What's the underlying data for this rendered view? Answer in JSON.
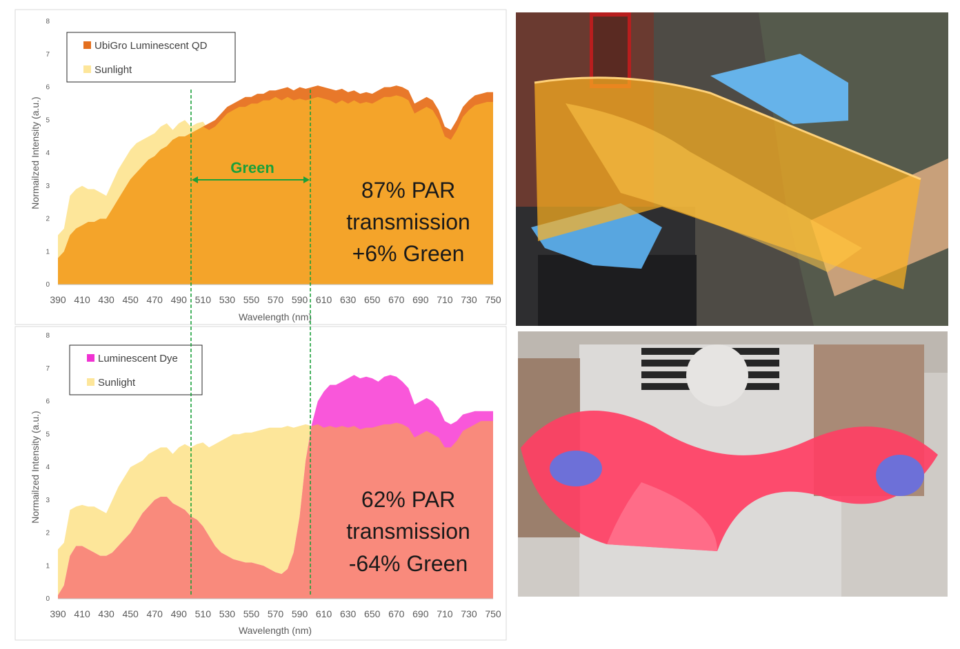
{
  "colors": {
    "sunlight": "#fde69a",
    "qd": "#f4a42a",
    "qd_legend": "#e46f1e",
    "qd_dark": "#e8782a",
    "dye": "#f98a7c",
    "dye_legend": "#f032d2",
    "dye_pink": "#f957da",
    "green_marker": "#1aa03a"
  },
  "chart_data": [
    {
      "type": "area",
      "xlabel": "Wavelength (nm)",
      "ylabel": "Normailzed Intensity (a.u.)",
      "ylim": [
        0,
        8
      ],
      "xlim": [
        390,
        750
      ],
      "xticks": [
        "390",
        "410",
        "430",
        "450",
        "470",
        "490",
        "510",
        "530",
        "550",
        "570",
        "590",
        "610",
        "630",
        "650",
        "670",
        "690",
        "710",
        "730",
        "750"
      ],
      "yticks": [
        "0",
        "1",
        "2",
        "3",
        "4",
        "5",
        "6",
        "7",
        "8"
      ],
      "grid": false,
      "legend": "top-left",
      "x": [
        390,
        395,
        400,
        405,
        410,
        415,
        420,
        425,
        430,
        435,
        440,
        445,
        450,
        455,
        460,
        465,
        470,
        475,
        480,
        485,
        490,
        495,
        500,
        505,
        510,
        515,
        520,
        525,
        530,
        535,
        540,
        545,
        550,
        555,
        560,
        565,
        570,
        575,
        580,
        585,
        590,
        595,
        600,
        605,
        610,
        615,
        620,
        625,
        630,
        635,
        640,
        645,
        650,
        655,
        660,
        665,
        670,
        675,
        680,
        685,
        690,
        695,
        700,
        705,
        710,
        715,
        720,
        725,
        730,
        735,
        740,
        745,
        750
      ],
      "series": [
        {
          "name": "UbiGro Luminescent QD",
          "values": [
            0.8,
            1.0,
            1.5,
            1.7,
            1.8,
            1.9,
            1.9,
            2.0,
            2.0,
            2.3,
            2.6,
            2.9,
            3.2,
            3.4,
            3.6,
            3.8,
            3.9,
            4.1,
            4.2,
            4.4,
            4.5,
            4.5,
            4.6,
            4.7,
            4.8,
            4.9,
            5.0,
            5.2,
            5.4,
            5.5,
            5.6,
            5.7,
            5.7,
            5.8,
            5.8,
            5.9,
            5.9,
            5.95,
            6.0,
            5.9,
            6.0,
            5.95,
            6.0,
            6.05,
            6.0,
            5.95,
            5.9,
            5.95,
            5.85,
            5.9,
            5.8,
            5.85,
            5.8,
            5.9,
            6.0,
            6.0,
            6.05,
            6.0,
            5.9,
            5.5,
            5.6,
            5.7,
            5.6,
            5.3,
            4.8,
            4.7,
            5.0,
            5.4,
            5.6,
            5.75,
            5.8,
            5.85,
            5.85
          ]
        },
        {
          "name": "Sunlight",
          "values": [
            1.5,
            1.7,
            2.7,
            2.9,
            3.0,
            2.9,
            2.9,
            2.8,
            2.7,
            3.1,
            3.5,
            3.8,
            4.1,
            4.3,
            4.4,
            4.5,
            4.6,
            4.8,
            4.9,
            4.7,
            4.9,
            5.0,
            4.8,
            4.9,
            4.95,
            4.7,
            4.8,
            5.0,
            5.2,
            5.3,
            5.4,
            5.4,
            5.5,
            5.5,
            5.6,
            5.6,
            5.7,
            5.6,
            5.7,
            5.6,
            5.65,
            5.6,
            5.65,
            5.7,
            5.65,
            5.6,
            5.5,
            5.6,
            5.5,
            5.6,
            5.5,
            5.55,
            5.5,
            5.6,
            5.7,
            5.7,
            5.75,
            5.7,
            5.6,
            5.2,
            5.3,
            5.4,
            5.3,
            5.0,
            4.5,
            4.4,
            4.7,
            5.1,
            5.3,
            5.45,
            5.5,
            5.55,
            5.55
          ]
        }
      ]
    },
    {
      "type": "area",
      "xlabel": "Wavelength (nm)",
      "ylabel": "Normailzed Intensity (a.u.)",
      "ylim": [
        0,
        8
      ],
      "xlim": [
        390,
        750
      ],
      "xticks": [
        "390",
        "410",
        "430",
        "450",
        "470",
        "490",
        "510",
        "530",
        "550",
        "570",
        "590",
        "610",
        "630",
        "650",
        "670",
        "690",
        "710",
        "730",
        "750"
      ],
      "yticks": [
        "0",
        "1",
        "2",
        "3",
        "4",
        "5",
        "6",
        "7",
        "8"
      ],
      "grid": false,
      "legend": "top-left",
      "x": [
        390,
        395,
        400,
        405,
        410,
        415,
        420,
        425,
        430,
        435,
        440,
        445,
        450,
        455,
        460,
        465,
        470,
        475,
        480,
        485,
        490,
        495,
        500,
        505,
        510,
        515,
        520,
        525,
        530,
        535,
        540,
        545,
        550,
        555,
        560,
        565,
        570,
        575,
        580,
        585,
        590,
        595,
        600,
        605,
        610,
        615,
        620,
        625,
        630,
        635,
        640,
        645,
        650,
        655,
        660,
        665,
        670,
        675,
        680,
        685,
        690,
        695,
        700,
        705,
        710,
        715,
        720,
        725,
        730,
        735,
        740,
        745,
        750
      ],
      "series": [
        {
          "name": "Luminescent Dye",
          "values": [
            0.1,
            0.4,
            1.3,
            1.6,
            1.6,
            1.5,
            1.4,
            1.3,
            1.3,
            1.4,
            1.6,
            1.8,
            2.0,
            2.3,
            2.6,
            2.8,
            3.0,
            3.1,
            3.1,
            2.9,
            2.8,
            2.7,
            2.5,
            2.4,
            2.2,
            1.9,
            1.6,
            1.4,
            1.3,
            1.2,
            1.15,
            1.1,
            1.1,
            1.05,
            1.0,
            0.9,
            0.8,
            0.75,
            0.9,
            1.4,
            2.5,
            4.2,
            5.3,
            6.0,
            6.3,
            6.5,
            6.5,
            6.6,
            6.7,
            6.8,
            6.7,
            6.75,
            6.7,
            6.6,
            6.75,
            6.8,
            6.75,
            6.6,
            6.4,
            5.9,
            6.0,
            6.1,
            6.0,
            5.8,
            5.4,
            5.3,
            5.4,
            5.6,
            5.65,
            5.7,
            5.7,
            5.7,
            5.7
          ]
        },
        {
          "name": "Sunlight",
          "values": [
            1.5,
            1.7,
            2.7,
            2.8,
            2.85,
            2.8,
            2.8,
            2.7,
            2.6,
            3.0,
            3.4,
            3.7,
            4.0,
            4.1,
            4.2,
            4.4,
            4.5,
            4.6,
            4.6,
            4.4,
            4.6,
            4.7,
            4.6,
            4.7,
            4.75,
            4.6,
            4.7,
            4.8,
            4.9,
            5.0,
            5.0,
            5.05,
            5.05,
            5.1,
            5.15,
            5.2,
            5.2,
            5.2,
            5.25,
            5.2,
            5.25,
            5.3,
            5.25,
            5.3,
            5.2,
            5.25,
            5.2,
            5.25,
            5.2,
            5.25,
            5.15,
            5.2,
            5.2,
            5.25,
            5.3,
            5.3,
            5.35,
            5.3,
            5.2,
            4.9,
            5.0,
            5.1,
            5.0,
            4.9,
            4.6,
            4.6,
            4.8,
            5.1,
            5.2,
            5.3,
            5.4,
            5.4,
            5.4
          ]
        }
      ]
    }
  ],
  "overlays": {
    "top": {
      "green_region_label": "Green",
      "green_region": [
        500,
        600
      ],
      "stat_lines": [
        "87% PAR",
        "transmission",
        "+6% Green"
      ]
    },
    "bottom": {
      "green_region": [
        500,
        600
      ],
      "stat_lines": [
        "62% PAR",
        "transmission",
        "-64% Green"
      ]
    }
  },
  "photos": [
    {
      "subject": "hands holding flexible orange luminescent film"
    },
    {
      "subject": "person holding curved pink luminescent film"
    }
  ]
}
